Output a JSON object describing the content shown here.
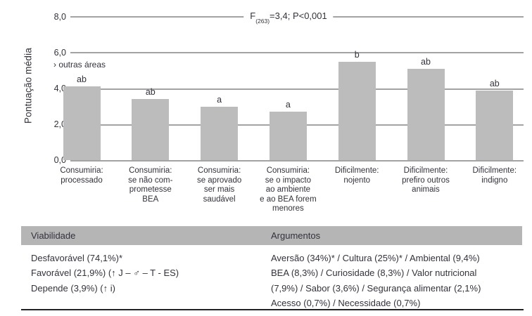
{
  "figure_title": "Bar chart of mean scores with ANOVA statistic and viability table",
  "stat": {
    "prefix": "F",
    "subscript": "(263)",
    "rest": "=3,4; P<0,001"
  },
  "chart_data": {
    "type": "bar",
    "title": "F(263)=3,4; P<0,001",
    "xlabel": "",
    "ylabel": "Pontuação média",
    "ylim": [
      0,
      8
    ],
    "ytick_labels": [
      "8,0",
      "6,0",
      "4,0",
      "2,0",
      "0,0"
    ],
    "ytick_values": [
      8,
      6,
      4,
      2,
      0
    ],
    "grid": true,
    "legend": "none",
    "bar_color": "#bcbcbc",
    "annotation": "› outras áreas",
    "categories": [
      "Consumiria:\nprocessado",
      "Consumiria:\nse não com-\nprometesse\nBEA",
      "Consumiria:\nse aprovado\nser mais\nsaudável",
      "Consumiria:\nse o impacto\nao ambiente\ne ao BEA forem\nmenores",
      "Dificilmente:\nnojento",
      "Dificilmente:\nprefiro outros\nanimais",
      "Dificilmente:\nindigno"
    ],
    "values": [
      4.1,
      3.4,
      3.0,
      2.7,
      5.5,
      5.1,
      3.9
    ],
    "sig_letters": [
      "ab",
      "ab",
      "a",
      "a",
      "b",
      "ab",
      "ab"
    ]
  },
  "table": {
    "headers": [
      "Viabilidade",
      "Argumentos"
    ],
    "viability_lines": [
      "Desfavorável (74,1%)*",
      "Favorável (21,9%) (↑ J – ♂ – T - ES)",
      "Depende (3,9%) (↑ i)"
    ],
    "arguments_lines": [
      "Aversão (34%)* / Cultura (25%)* / Ambiental (9,4%)",
      "BEA (8,3%) / Curiosidade (8,3%) / Valor nutricional",
      "(7,9%) / Sabor (3,6%) / Segurança alimentar (2,1%)",
      "Acesso (0,7%) / Necessidade (0,7%)"
    ]
  },
  "colors": {
    "bar": "#bcbcbc",
    "gridline": "#a3a3a3",
    "header_band": "#b5b5b5",
    "text": "#32323c",
    "bottom_rule": "#222226"
  }
}
